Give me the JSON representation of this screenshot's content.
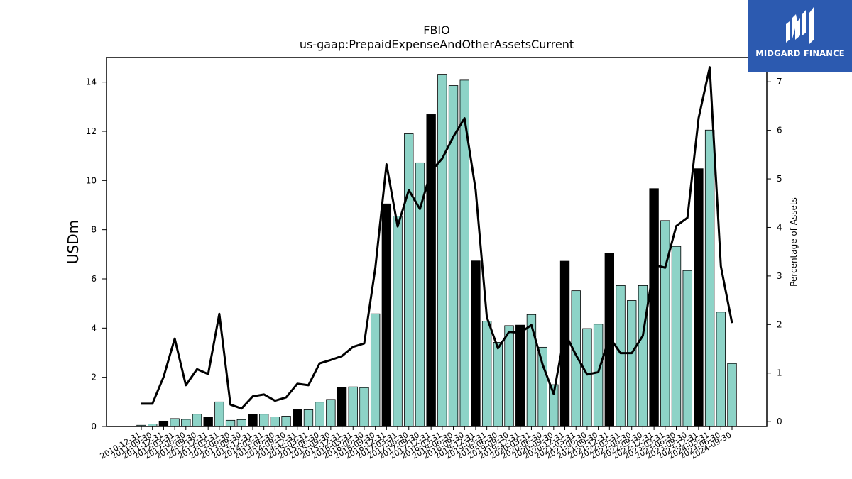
{
  "brand": {
    "name": "MIDGARD FINANCE"
  },
  "chart_data": {
    "type": "bar",
    "title": "FBIO",
    "subtitle": "us-gaap:PrepaidExpenseAndOtherAssetsCurrent",
    "ylabel": "USDm",
    "y2label": "Percentage of Assets",
    "ylim": [
      0,
      15
    ],
    "y2lim": [
      -0.1,
      7.5
    ],
    "yticks": [
      0,
      2,
      4,
      6,
      8,
      10,
      12,
      14
    ],
    "y2ticks": [
      0,
      1,
      2,
      3,
      4,
      5,
      6,
      7
    ],
    "colors": {
      "bar": "#8dd3c7",
      "bar_annual": "#000000",
      "line": "#000000"
    },
    "categories": [
      "2010-12-31",
      "2011-09-30",
      "2011-12-31",
      "2012-03-31",
      "2012-06-30",
      "2012-09-30",
      "2012-12-31",
      "2013-03-31",
      "2013-06-30",
      "2013-09-30",
      "2013-12-31",
      "2014-03-31",
      "2014-06-30",
      "2014-09-30",
      "2014-12-31",
      "2015-03-31",
      "2015-06-30",
      "2015-09-30",
      "2015-12-31",
      "2016-03-31",
      "2016-06-30",
      "2016-09-30",
      "2016-12-31",
      "2017-03-31",
      "2017-06-30",
      "2017-09-30",
      "2017-12-31",
      "2018-03-31",
      "2018-06-30",
      "2018-09-30",
      "2018-12-31",
      "2019-03-31",
      "2019-06-30",
      "2019-09-30",
      "2019-12-31",
      "2020-03-31",
      "2020-06-30",
      "2020-09-30",
      "2020-12-31",
      "2021-03-31",
      "2021-06-30",
      "2021-09-30",
      "2021-12-31",
      "2022-03-31",
      "2022-06-30",
      "2022-09-30",
      "2022-12-31",
      "2023-03-31",
      "2023-06-30",
      "2023-09-30",
      "2023-12-31",
      "2024-03-31",
      "2024-06-30",
      "2024-09-30"
    ],
    "tick_labels": [
      "2010-12-31",
      "2011-09-30",
      "2011-12-31",
      "2012-03-31",
      "2012-06-30",
      "2012-09-30",
      "2012-12-31",
      "2013-03-31",
      "2013-06-30",
      "2013-09-30",
      "2013-12-31",
      "2014-03-31",
      "2014-06-30",
      "2014-09-30",
      "2014-12-31",
      "2015-03-31",
      "2015-06-30",
      "2015-09-30",
      "2015-12-31",
      "2016-03-31",
      "2016-06-30",
      "2016-09-30",
      "2016-12-31",
      "2017-03-31",
      "2017-06-30",
      "2017-09-30",
      "2017-12-31",
      "2018-03-31",
      "2018-06-30",
      "2018-09-30",
      "2018-12-31",
      "2019-03-31",
      "2019-06-30",
      "2019-09-30",
      "2019-12-31",
      "2020-03-31",
      "2020-06-30",
      "2020-09-30",
      "2020-12-31",
      "2021-03-31",
      "2021-06-30",
      "2021-09-30",
      "2021-12-31",
      "2022-03-31",
      "2022-06-30",
      "2022-09-30",
      "2022-12-31",
      "2023-03-31",
      "2023-06-30",
      "2023-09-30",
      "2023-12-31",
      "2024-03-31",
      "2024-06-30",
      "2024-09-30"
    ],
    "series": [
      {
        "type": "bar",
        "axis": "left",
        "values": [
          0.05,
          0.1,
          0.22,
          0.32,
          0.29,
          0.5,
          0.38,
          1.0,
          0.25,
          0.28,
          0.5,
          0.5,
          0.39,
          0.42,
          0.68,
          0.68,
          0.99,
          1.1,
          1.58,
          1.61,
          1.58,
          4.58,
          9.05,
          8.55,
          11.9,
          10.72,
          12.68,
          14.32,
          13.86,
          14.08,
          6.73,
          4.28,
          3.42,
          4.1,
          4.12,
          4.55,
          3.22,
          1.7,
          6.72,
          5.52,
          3.98,
          4.16,
          7.05,
          5.73,
          5.12,
          5.73,
          9.67,
          8.37,
          7.32,
          6.34,
          10.48,
          12.05,
          4.65,
          2.56
        ],
        "annual": [
          false,
          false,
          true,
          false,
          false,
          false,
          true,
          false,
          false,
          false,
          true,
          false,
          false,
          false,
          true,
          false,
          false,
          false,
          true,
          false,
          false,
          false,
          true,
          false,
          false,
          false,
          true,
          false,
          false,
          false,
          true,
          false,
          false,
          false,
          true,
          false,
          false,
          false,
          true,
          false,
          false,
          false,
          true,
          false,
          false,
          false,
          true,
          false,
          false,
          false,
          true,
          false,
          false,
          false
        ]
      },
      {
        "type": "line",
        "axis": "right",
        "values": [
          0.37,
          0.37,
          0.92,
          1.71,
          0.75,
          1.08,
          0.98,
          2.22,
          0.35,
          0.27,
          0.52,
          0.56,
          0.43,
          0.5,
          0.78,
          0.75,
          1.2,
          1.27,
          1.35,
          1.54,
          1.61,
          3.17,
          5.3,
          4.02,
          4.77,
          4.38,
          5.16,
          5.42,
          5.87,
          6.25,
          4.77,
          2.15,
          1.51,
          1.85,
          1.83,
          1.99,
          1.18,
          0.57,
          1.83,
          1.37,
          0.97,
          1.02,
          1.74,
          1.41,
          1.41,
          1.77,
          3.23,
          3.17,
          4.03,
          4.2,
          6.25,
          7.3,
          3.2,
          2.03
        ]
      }
    ]
  }
}
